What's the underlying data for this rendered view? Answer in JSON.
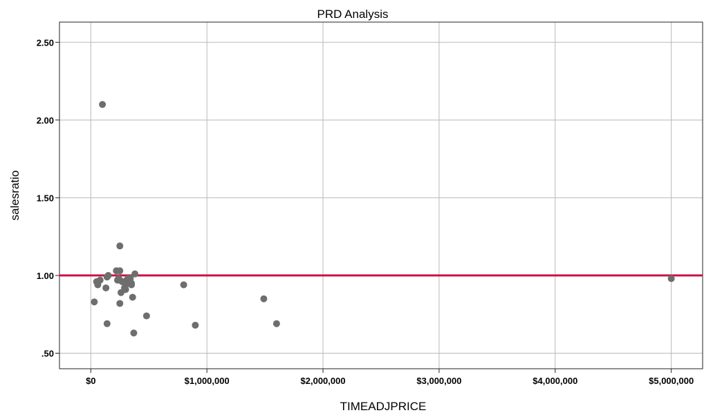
{
  "chart_data": {
    "type": "scatter",
    "title": "PRD Analysis",
    "xlabel": "TIMEADJPRICE",
    "ylabel": "salesratio",
    "xlim": [
      -270000,
      5270000
    ],
    "ylim": [
      0.4,
      2.63
    ],
    "xticks": [
      0,
      1000000,
      2000000,
      3000000,
      4000000,
      5000000
    ],
    "xtick_labels": [
      "$0",
      "$1,000,000",
      "$2,000,000",
      "$3,000,000",
      "$4,000,000",
      "$5,000,000"
    ],
    "yticks": [
      0.5,
      1.0,
      1.5,
      2.0,
      2.5
    ],
    "ytick_labels": [
      ".50",
      "1.00",
      "1.50",
      "2.00",
      "2.50"
    ],
    "grid": true,
    "reference_line": {
      "y": 1.0,
      "color": "#cc1045"
    },
    "point_color": "#6e6e6e",
    "x": [
      100000,
      30000,
      50000,
      60000,
      80000,
      130000,
      140000,
      150000,
      140000,
      220000,
      240000,
      250000,
      230000,
      250000,
      260000,
      270000,
      290000,
      300000,
      310000,
      320000,
      340000,
      350000,
      360000,
      380000,
      300000,
      250000,
      350000,
      480000,
      370000,
      250000,
      800000,
      900000,
      1490000,
      1600000,
      5000000
    ],
    "y": [
      2.1,
      0.83,
      0.96,
      0.94,
      0.97,
      0.92,
      0.69,
      1.0,
      0.99,
      1.03,
      0.98,
      1.03,
      0.97,
      1.19,
      0.89,
      0.96,
      0.92,
      0.94,
      0.97,
      0.98,
      0.98,
      0.94,
      0.86,
      1.01,
      0.91,
      0.82,
      0.95,
      0.74,
      0.63,
      0.97,
      0.94,
      0.68,
      0.85,
      0.69,
      0.98
    ]
  }
}
